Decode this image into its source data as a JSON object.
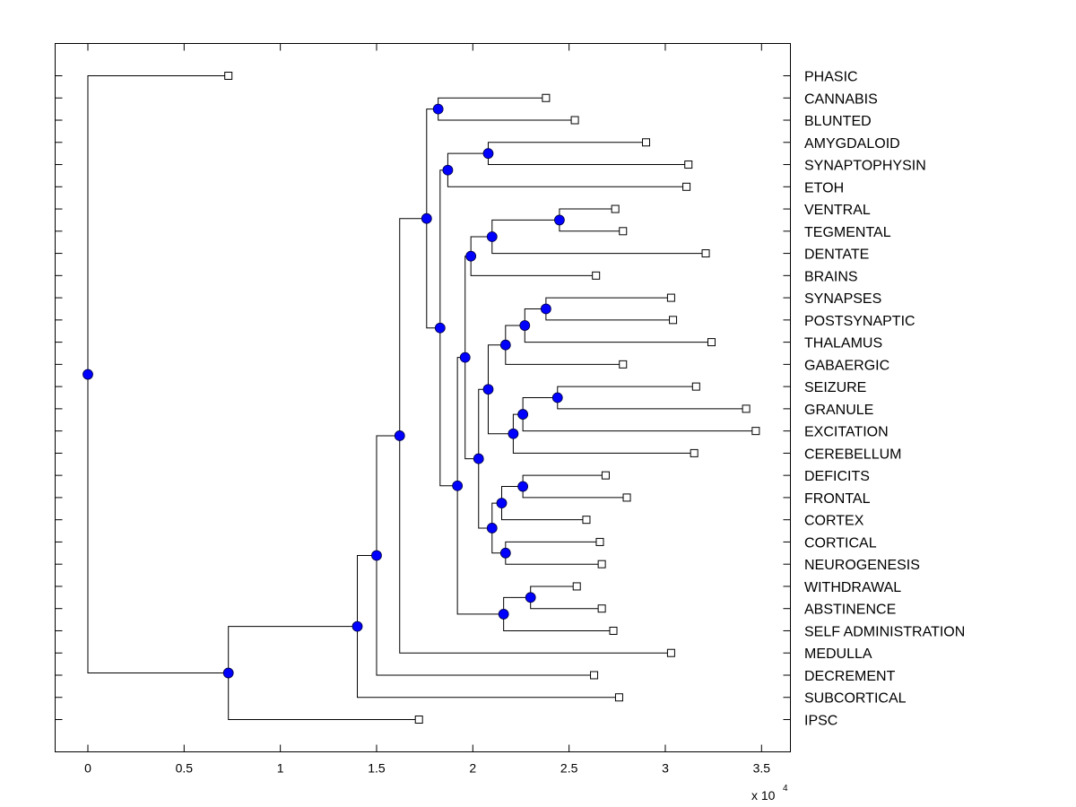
{
  "chart_data": {
    "type": "dendrogram",
    "title": "",
    "xlabel": "",
    "ylabel": "",
    "x_multiplier_label": "x 10",
    "x_multiplier_exponent": "4",
    "xlim": [
      -0.17,
      3.65
    ],
    "xticks": [
      0,
      0.5,
      1,
      1.5,
      2,
      2.5,
      3,
      3.5
    ],
    "xtick_labels": [
      "0",
      "0.5",
      "1",
      "1.5",
      "2",
      "2.5",
      "3",
      "3.5"
    ],
    "grid": false,
    "colors": {
      "internal_node": "#0000ff",
      "leaf_fill": "#ffffff",
      "line": "#000000"
    },
    "leaves": [
      {
        "id": "PHASIC",
        "label": "PHASIC",
        "x": 0.73
      },
      {
        "id": "CANNABIS",
        "label": "CANNABIS",
        "x": 2.38
      },
      {
        "id": "BLUNTED",
        "label": "BLUNTED",
        "x": 2.53
      },
      {
        "id": "AMYGDALOID",
        "label": "AMYGDALOID",
        "x": 2.9
      },
      {
        "id": "SYNAPTOPHYSIN",
        "label": "SYNAPTOPHYSIN",
        "x": 3.12
      },
      {
        "id": "ETOH",
        "label": "ETOH",
        "x": 3.11
      },
      {
        "id": "VENTRAL",
        "label": "VENTRAL",
        "x": 2.74
      },
      {
        "id": "TEGMENTAL",
        "label": "TEGMENTAL",
        "x": 2.78
      },
      {
        "id": "DENTATE",
        "label": "DENTATE",
        "x": 3.21
      },
      {
        "id": "BRAINS",
        "label": "BRAINS",
        "x": 2.64
      },
      {
        "id": "SYNAPSES",
        "label": "SYNAPSES",
        "x": 3.03
      },
      {
        "id": "POSTSYNAPTIC",
        "label": "POSTSYNAPTIC",
        "x": 3.04
      },
      {
        "id": "THALAMUS",
        "label": "THALAMUS",
        "x": 3.24
      },
      {
        "id": "GABAERGIC",
        "label": "GABAERGIC",
        "x": 2.78
      },
      {
        "id": "SEIZURE",
        "label": "SEIZURE",
        "x": 3.16
      },
      {
        "id": "GRANULE",
        "label": "GRANULE",
        "x": 3.42
      },
      {
        "id": "EXCITATION",
        "label": "EXCITATION",
        "x": 3.47
      },
      {
        "id": "CEREBELLUM",
        "label": "CEREBELLUM",
        "x": 3.15
      },
      {
        "id": "DEFICITS",
        "label": "DEFICITS",
        "x": 2.69
      },
      {
        "id": "FRONTAL",
        "label": "FRONTAL",
        "x": 2.8
      },
      {
        "id": "CORTEX",
        "label": "CORTEX",
        "x": 2.59
      },
      {
        "id": "CORTICAL",
        "label": "CORTICAL",
        "x": 2.66
      },
      {
        "id": "NEUROGENESIS",
        "label": "NEUROGENESIS",
        "x": 2.67
      },
      {
        "id": "WITHDRAWAL",
        "label": "WITHDRAWAL",
        "x": 2.54
      },
      {
        "id": "ABSTINENCE",
        "label": "ABSTINENCE",
        "x": 2.67
      },
      {
        "id": "SELF_ADMINISTRATION",
        "label": "SELF ADMINISTRATION",
        "x": 2.73
      },
      {
        "id": "MEDULLA",
        "label": "MEDULLA",
        "x": 3.03
      },
      {
        "id": "DECREMENT",
        "label": "DECREMENT",
        "x": 2.63
      },
      {
        "id": "SUBCORTICAL",
        "label": "SUBCORTICAL",
        "x": 2.76
      },
      {
        "id": "IPSC",
        "label": "IPSC",
        "x": 1.72
      }
    ],
    "internal_nodes": [
      {
        "id": "root",
        "x": 0.0,
        "children": [
          "PHASIC",
          "nA"
        ]
      },
      {
        "id": "nA",
        "x": 0.73,
        "children": [
          "nB",
          "IPSC"
        ]
      },
      {
        "id": "nB",
        "x": 1.4,
        "children": [
          "nC",
          "SUBCORTICAL"
        ]
      },
      {
        "id": "nC",
        "x": 1.5,
        "children": [
          "nD",
          "DECREMENT"
        ]
      },
      {
        "id": "nD",
        "x": 1.62,
        "children": [
          "nE",
          "MEDULLA"
        ]
      },
      {
        "id": "nE",
        "x": 1.76,
        "children": [
          "nF",
          "nG"
        ]
      },
      {
        "id": "nF",
        "x": 1.82,
        "children": [
          "CANNABIS",
          "BLUNTED"
        ]
      },
      {
        "id": "nG",
        "x": 1.83,
        "children": [
          "nH",
          "nI"
        ]
      },
      {
        "id": "nH",
        "x": 1.87,
        "children": [
          "nJ",
          "ETOH"
        ]
      },
      {
        "id": "nJ",
        "x": 2.08,
        "children": [
          "AMYGDALOID",
          "SYNAPTOPHYSIN"
        ]
      },
      {
        "id": "nI",
        "x": 1.92,
        "children": [
          "nK",
          "nL"
        ]
      },
      {
        "id": "nK",
        "x": 1.96,
        "children": [
          "nM",
          "nN"
        ]
      },
      {
        "id": "nM",
        "x": 1.99,
        "children": [
          "nO",
          "BRAINS"
        ]
      },
      {
        "id": "nO",
        "x": 2.1,
        "children": [
          "nP",
          "DENTATE"
        ]
      },
      {
        "id": "nP",
        "x": 2.45,
        "children": [
          "VENTRAL",
          "TEGMENTAL"
        ]
      },
      {
        "id": "nN",
        "x": 2.03,
        "children": [
          "nQ",
          "nR"
        ]
      },
      {
        "id": "nQ",
        "x": 2.08,
        "children": [
          "nS",
          "nT"
        ]
      },
      {
        "id": "nS",
        "x": 2.17,
        "children": [
          "nU",
          "GABAERGIC"
        ]
      },
      {
        "id": "nU",
        "x": 2.27,
        "children": [
          "nV",
          "THALAMUS"
        ]
      },
      {
        "id": "nV",
        "x": 2.38,
        "children": [
          "SYNAPSES",
          "POSTSYNAPTIC"
        ]
      },
      {
        "id": "nT",
        "x": 2.21,
        "children": [
          "nW",
          "CEREBELLUM"
        ]
      },
      {
        "id": "nW",
        "x": 2.26,
        "children": [
          "nX",
          "EXCITATION"
        ]
      },
      {
        "id": "nX",
        "x": 2.44,
        "children": [
          "SEIZURE",
          "GRANULE"
        ]
      },
      {
        "id": "nR",
        "x": 2.1,
        "children": [
          "nY",
          "nZ"
        ]
      },
      {
        "id": "nY",
        "x": 2.15,
        "children": [
          "nAA",
          "CORTEX"
        ]
      },
      {
        "id": "nAA",
        "x": 2.26,
        "children": [
          "DEFICITS",
          "FRONTAL"
        ]
      },
      {
        "id": "nZ",
        "x": 2.17,
        "children": [
          "CORTICAL",
          "NEUROGENESIS"
        ]
      },
      {
        "id": "nL",
        "x": 2.16,
        "children": [
          "nAB",
          "SELF_ADMINISTRATION"
        ]
      },
      {
        "id": "nAB",
        "x": 2.3,
        "children": [
          "WITHDRAWAL",
          "ABSTINENCE"
        ]
      }
    ]
  }
}
